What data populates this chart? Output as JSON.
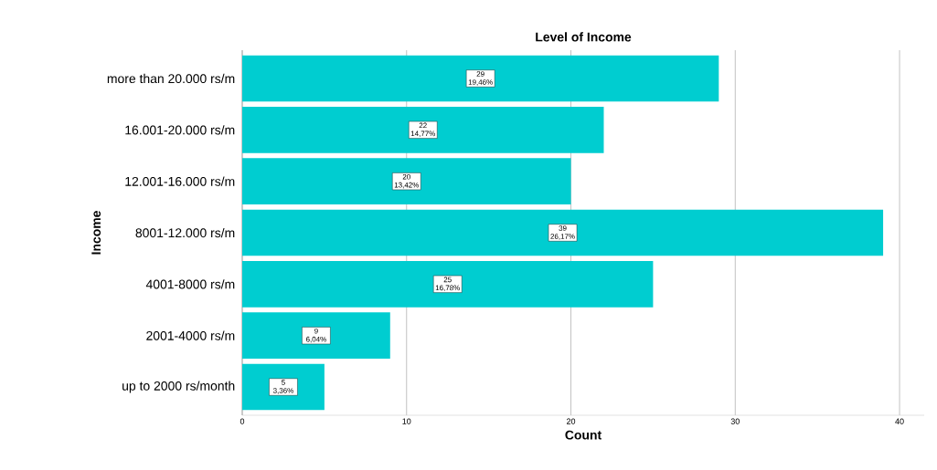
{
  "chart_data": {
    "type": "bar",
    "orientation": "horizontal",
    "title": "Level of Income",
    "xlabel": "Count",
    "ylabel": "Income",
    "categories": [
      "more than 20.000 rs/m",
      "16.001-20.000 rs/m",
      "12.001-16.000 rs/m",
      "8001-12.000 rs/m",
      "4001-8000 rs/m",
      "2001-4000 rs/m",
      "up to 2000 rs/month"
    ],
    "values": [
      29,
      22,
      20,
      39,
      25,
      9,
      5
    ],
    "value_labels": [
      "29 19,46%",
      "22 14,77%",
      "20 13,42%",
      "39 26,17%",
      "25 16,78%",
      "9 6,04%",
      "5 3,36%"
    ],
    "color": "#00cdd0",
    "xlim": [
      0,
      41.5
    ],
    "xticks": [
      0,
      10,
      20,
      30,
      40
    ],
    "grid": "x"
  }
}
